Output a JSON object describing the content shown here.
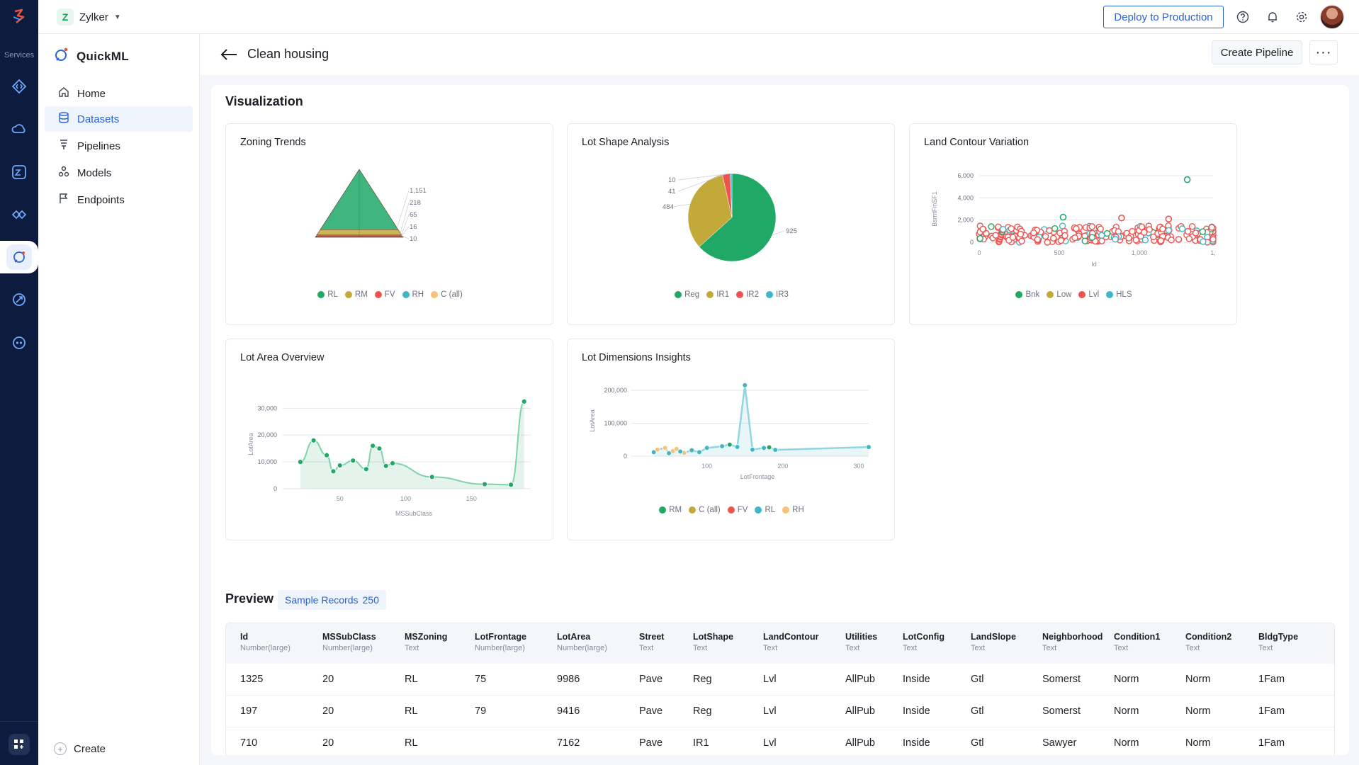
{
  "rail": {
    "services_label": "Services"
  },
  "topbar": {
    "org_initial": "Z",
    "org_name": "Zylker",
    "deploy_label": "Deploy to Production"
  },
  "sidebar": {
    "brand": "QuickML",
    "items": [
      {
        "label": "Home",
        "icon": "home-icon"
      },
      {
        "label": "Datasets",
        "icon": "database-icon",
        "active": true
      },
      {
        "label": "Pipelines",
        "icon": "pipeline-icon"
      },
      {
        "label": "Models",
        "icon": "models-icon"
      },
      {
        "label": "Endpoints",
        "icon": "flag-icon"
      }
    ],
    "create_label": "Create"
  },
  "page": {
    "title": "Clean housing",
    "create_pipeline_label": "Create Pipeline",
    "more_label": "···"
  },
  "visualization": {
    "title": "Visualization",
    "cards": [
      "Zoning Trends",
      "Lot Shape Analysis",
      "Land Contour Variation",
      "Lot Area Overview",
      "Lot Dimensions Insights"
    ]
  },
  "chart_data": [
    {
      "type": "pyramid",
      "title": "Zoning Trends",
      "categories": [
        "RL",
        "RM",
        "FV",
        "RH",
        "C (all)"
      ],
      "values": [
        1151,
        218,
        65,
        16,
        10
      ],
      "value_labels": [
        "1,151",
        "218",
        "65",
        "16",
        "10"
      ],
      "colors": [
        "#1fa866",
        "#c2a93a",
        "#ef5350",
        "#3fb6c6",
        "#f7c27a"
      ]
    },
    {
      "type": "pie",
      "title": "Lot Shape Analysis",
      "categories": [
        "Reg",
        "IR1",
        "IR2",
        "IR3"
      ],
      "values": [
        925,
        484,
        41,
        10
      ],
      "value_labels": [
        "925",
        "484",
        "41",
        "10"
      ],
      "colors": [
        "#1fa866",
        "#c2a93a",
        "#ef5350",
        "#3fb6c6"
      ]
    },
    {
      "type": "scatter",
      "title": "Land Contour Variation",
      "xlabel": "Id",
      "ylabel": "BsmtFinSF1",
      "xlim": [
        0,
        1460
      ],
      "ylim": [
        0,
        6000
      ],
      "xticks": [
        "0",
        "500",
        "1,000",
        "1,"
      ],
      "yticks": [
        "0",
        "2,000",
        "4,000",
        "6,000"
      ],
      "legend": [
        "Bnk",
        "Low",
        "Lvl",
        "HLS"
      ],
      "colors": [
        "#1fa866",
        "#c2a93a",
        "#ef5350",
        "#3fb6c6"
      ],
      "outliers": [
        {
          "x": 1299,
          "y": 5644,
          "series": "Bnk"
        },
        {
          "x": 524,
          "y": 2260,
          "series": "Bnk"
        },
        {
          "x": 889,
          "y": 2188,
          "series": "Lvl"
        },
        {
          "x": 1183,
          "y": 2096,
          "series": "Lvl"
        }
      ],
      "band_range": [
        0,
        1500
      ]
    },
    {
      "type": "line",
      "title": "Lot Area Overview",
      "xlabel": "MSSubClass",
      "ylabel": "LotArea",
      "xlim": [
        20,
        195
      ],
      "ylim": [
        0,
        33000
      ],
      "xticks": [
        "50",
        "100",
        "150"
      ],
      "yticks": [
        "0",
        "10,000",
        "20,000",
        "30,000"
      ],
      "x": [
        20,
        30,
        40,
        45,
        50,
        60,
        70,
        75,
        80,
        85,
        90,
        120,
        160,
        180,
        190
      ],
      "y": [
        10000,
        18000,
        12500,
        6500,
        8700,
        10500,
        7300,
        16000,
        15000,
        8500,
        9500,
        4400,
        1700,
        1500,
        32500
      ],
      "color": "#1fa866"
    },
    {
      "type": "scatter",
      "title": "Lot Dimensions Insights",
      "xlabel": "LotFrontage",
      "ylabel": "LotArea",
      "xlim": [
        21,
        313
      ],
      "ylim": [
        0,
        215000
      ],
      "xticks": [
        "100",
        "200",
        "300"
      ],
      "yticks": [
        "0",
        "100,000",
        "200,000"
      ],
      "legend": [
        "RM",
        "C (all)",
        "FV",
        "RL",
        "RH"
      ],
      "colors": [
        "#1fa866",
        "#c2a93a",
        "#ef5350",
        "#3fb6c6",
        "#f7c27a"
      ],
      "points": [
        {
          "x": 150,
          "y": 215245,
          "s": "RL"
        },
        {
          "x": 313,
          "y": 27650,
          "s": "RL"
        },
        {
          "x": 160,
          "y": 20000,
          "s": "RL"
        },
        {
          "x": 30,
          "y": 12000,
          "s": "RL"
        },
        {
          "x": 35,
          "y": 20000,
          "s": "RH"
        },
        {
          "x": 45,
          "y": 25000,
          "s": "RH"
        },
        {
          "x": 55,
          "y": 15000,
          "s": "RH"
        },
        {
          "x": 60,
          "y": 22000,
          "s": "RH"
        },
        {
          "x": 70,
          "y": 10000,
          "s": "RH"
        },
        {
          "x": 80,
          "y": 18000,
          "s": "RL"
        },
        {
          "x": 90,
          "y": 12000,
          "s": "RL"
        },
        {
          "x": 100,
          "y": 25000,
          "s": "RL"
        },
        {
          "x": 120,
          "y": 30000,
          "s": "RL"
        },
        {
          "x": 130,
          "y": 35000,
          "s": "RM"
        },
        {
          "x": 140,
          "y": 28000,
          "s": "RL"
        },
        {
          "x": 175,
          "y": 25000,
          "s": "RL"
        },
        {
          "x": 182,
          "y": 27000,
          "s": "RM"
        },
        {
          "x": 190,
          "y": 19000,
          "s": "RL"
        },
        {
          "x": 50,
          "y": 9000,
          "s": "RL"
        },
        {
          "x": 65,
          "y": 14000,
          "s": "RL"
        }
      ]
    }
  ],
  "preview": {
    "title": "Preview",
    "badge_label": "Sample Records",
    "badge_count": "250",
    "columns": [
      {
        "name": "Id",
        "type": "Number(large)"
      },
      {
        "name": "MSSubClass",
        "type": "Number(large)"
      },
      {
        "name": "MSZoning",
        "type": "Text"
      },
      {
        "name": "LotFrontage",
        "type": "Number(large)"
      },
      {
        "name": "LotArea",
        "type": "Number(large)"
      },
      {
        "name": "Street",
        "type": "Text"
      },
      {
        "name": "LotShape",
        "type": "Text"
      },
      {
        "name": "LandContour",
        "type": "Text"
      },
      {
        "name": "Utilities",
        "type": "Text"
      },
      {
        "name": "LotConfig",
        "type": "Text"
      },
      {
        "name": "LandSlope",
        "type": "Text"
      },
      {
        "name": "Neighborhood",
        "type": "Text"
      },
      {
        "name": "Condition1",
        "type": "Text"
      },
      {
        "name": "Condition2",
        "type": "Text"
      },
      {
        "name": "BldgType",
        "type": "Text"
      }
    ],
    "rows": [
      [
        "1325",
        "20",
        "RL",
        "75",
        "9986",
        "Pave",
        "Reg",
        "Lvl",
        "AllPub",
        "Inside",
        "Gtl",
        "Somerst",
        "Norm",
        "Norm",
        "1Fam"
      ],
      [
        "197",
        "20",
        "RL",
        "79",
        "9416",
        "Pave",
        "Reg",
        "Lvl",
        "AllPub",
        "Inside",
        "Gtl",
        "Somerst",
        "Norm",
        "Norm",
        "1Fam"
      ],
      [
        "710",
        "20",
        "RL",
        "",
        "7162",
        "Pave",
        "IR1",
        "Lvl",
        "AllPub",
        "Inside",
        "Gtl",
        "Sawyer",
        "Norm",
        "Norm",
        "1Fam"
      ]
    ]
  }
}
